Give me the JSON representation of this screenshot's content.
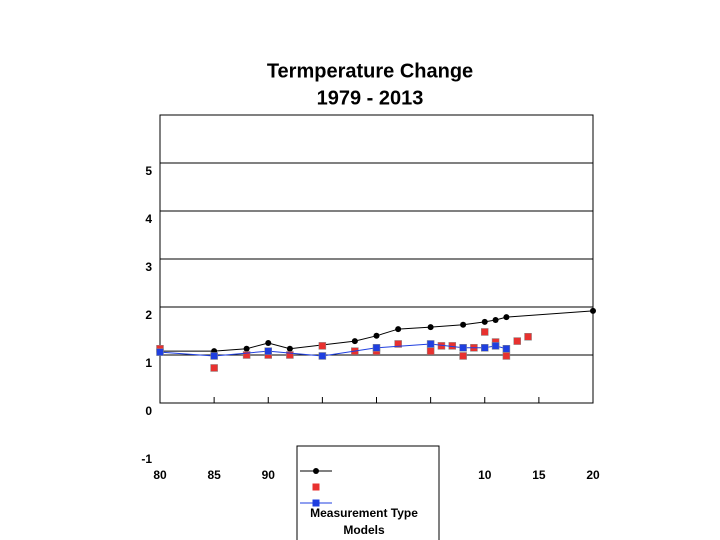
{
  "chart_data": {
    "type": "line",
    "title": "Termperature Change",
    "subtitle": "1979 - 2013",
    "xlim": [
      1980,
      2020
    ],
    "xticks": [
      {
        "value": 1980,
        "label": "80"
      },
      {
        "value": 1985,
        "label": "85"
      },
      {
        "value": 1990,
        "label": "90"
      },
      {
        "value": 1995,
        "label": null
      },
      {
        "value": 2000,
        "label": null
      },
      {
        "value": 2005,
        "label": null
      },
      {
        "value": 2010,
        "label": "10"
      },
      {
        "value": 2015,
        "label": "15"
      },
      {
        "value": 2020,
        "label": "20"
      }
    ],
    "ylim": [
      0,
      6
    ],
    "yticks": [
      -1,
      0,
      1,
      2,
      3,
      4,
      5
    ],
    "grid": true,
    "legend_texts": [
      "Measurement Type",
      "Models"
    ],
    "series": [
      {
        "color": "#000000",
        "marker": "circle",
        "line": true,
        "x": [
          1980,
          1985,
          1988,
          1990,
          1992,
          1998,
          2000,
          2002,
          2005,
          2008,
          2010,
          2011,
          2012,
          2020
        ],
        "values": [
          1.08,
          1.08,
          1.13,
          1.25,
          1.13,
          1.29,
          1.4,
          1.54,
          1.58,
          1.63,
          1.69,
          1.73,
          1.79,
          1.92
        ]
      },
      {
        "color": "#e8312f",
        "marker": "square",
        "line": false,
        "x": [
          1980,
          1985,
          1988,
          1990,
          1992,
          1995,
          1998,
          2000,
          2002,
          2005,
          2006,
          2007,
          2008,
          2009,
          2010,
          2011,
          2012,
          2013,
          2014
        ],
        "values": [
          1.13,
          0.73,
          1.0,
          1.0,
          1.0,
          1.19,
          1.08,
          1.08,
          1.23,
          1.08,
          1.19,
          1.19,
          0.98,
          1.15,
          1.48,
          1.27,
          0.98,
          1.29,
          1.38
        ]
      },
      {
        "color": "#1f3fe0",
        "marker": "square",
        "line": true,
        "x": [
          1980,
          1985,
          1990,
          1995,
          2000,
          2005,
          2008,
          2010,
          2011,
          2012
        ],
        "values": [
          1.06,
          0.98,
          1.08,
          0.98,
          1.15,
          1.23,
          1.15,
          1.15,
          1.19,
          1.13
        ]
      }
    ]
  }
}
